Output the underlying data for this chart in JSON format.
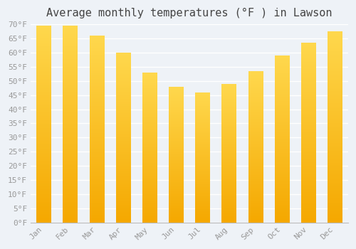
{
  "title": "Average monthly temperatures (°F ) in Lawson",
  "months": [
    "Jan",
    "Feb",
    "Mar",
    "Apr",
    "May",
    "Jun",
    "Jul",
    "Aug",
    "Sep",
    "Oct",
    "Nov",
    "Dec"
  ],
  "values": [
    69.5,
    69.5,
    66,
    60,
    53,
    48,
    46,
    49,
    53.5,
    59,
    63.5,
    67.5
  ],
  "bar_color_bottom": "#F5A800",
  "bar_color_top": "#FFD84D",
  "ylim": [
    0,
    70
  ],
  "ytick_max": 70,
  "ytick_step": 5,
  "background_color": "#eef2f7",
  "grid_color": "#ffffff",
  "title_fontsize": 11,
  "tick_label_color": "#999999",
  "tick_fontsize": 8,
  "bar_width": 0.55
}
